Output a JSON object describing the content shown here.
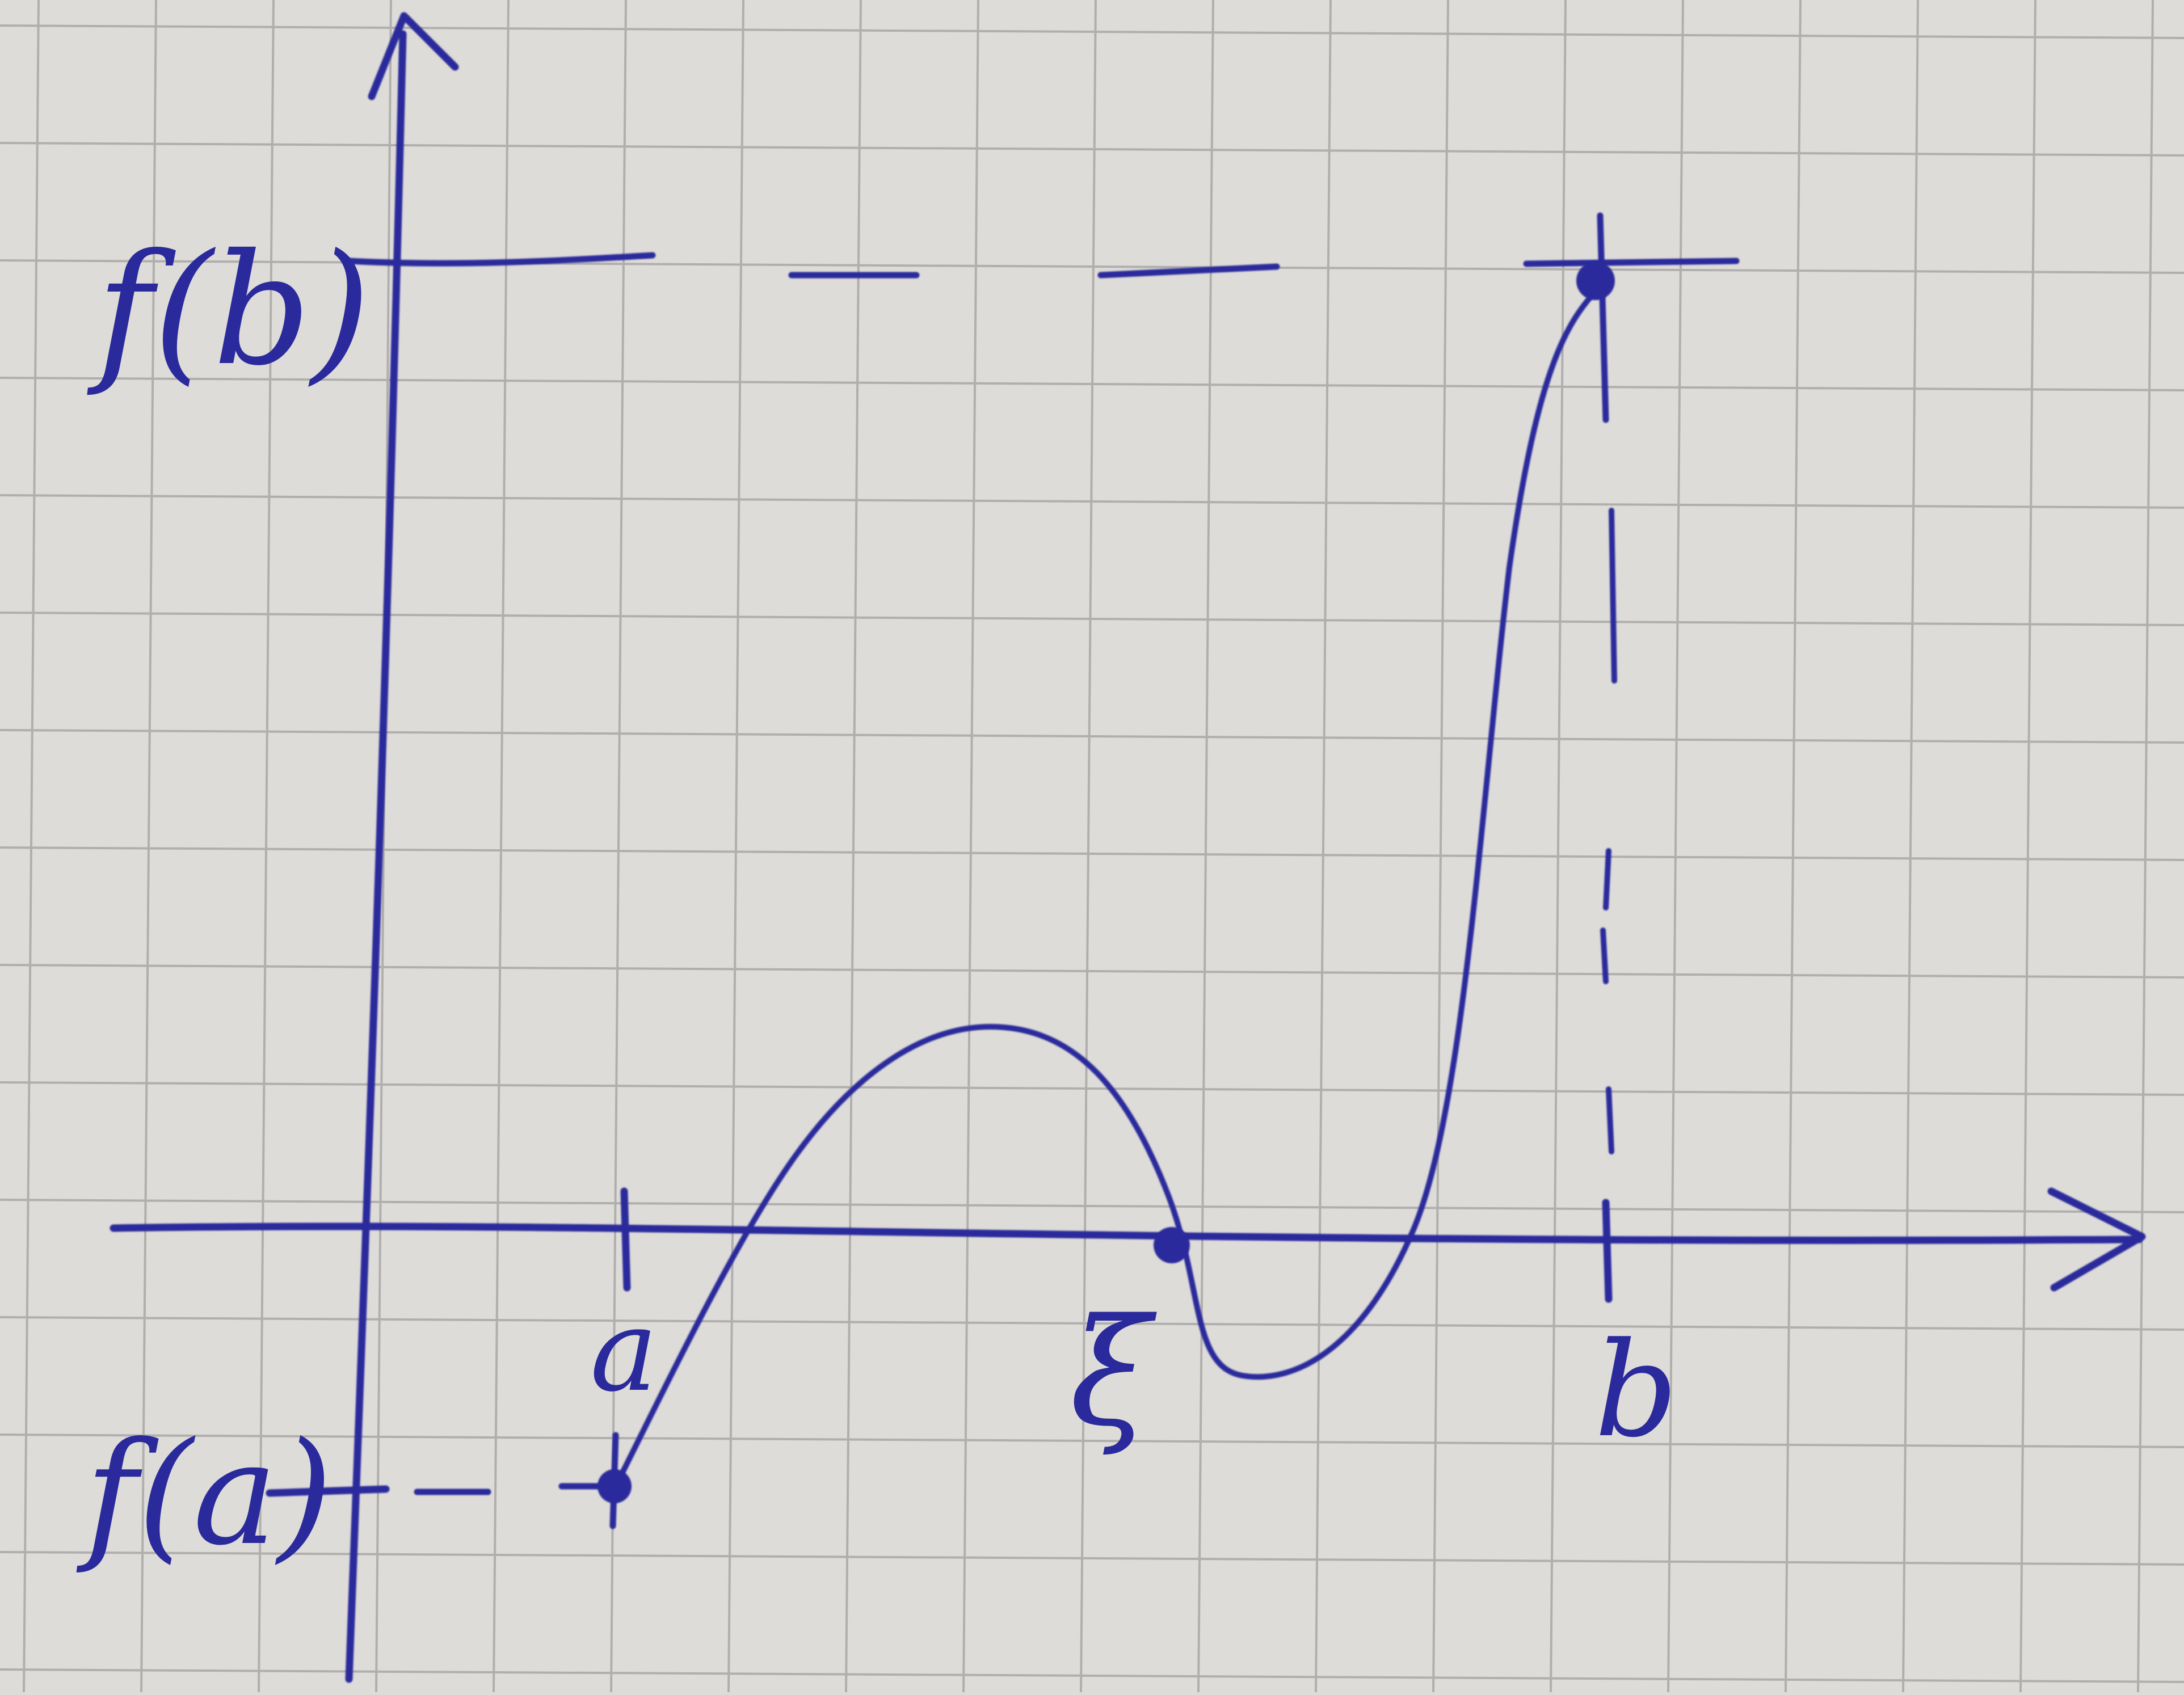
{
  "labels": {
    "fb": "f(b)",
    "fa": "f(a)",
    "a": "a",
    "xi": "ξ",
    "b": "b"
  },
  "colors": {
    "ink": "#2a2a9c",
    "paper": "#dedcd8",
    "grid": "#a9a8a6"
  }
}
